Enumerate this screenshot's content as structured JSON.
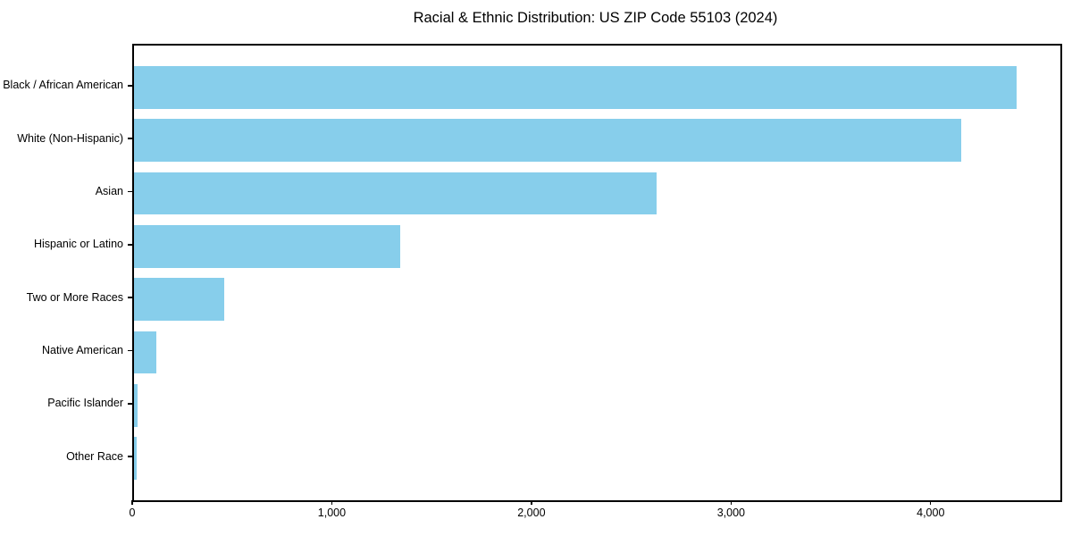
{
  "figure": {
    "background_color": "#ffffff",
    "frame_color": "#000000",
    "text_color": "#000000"
  },
  "chart_data": {
    "type": "bar",
    "orientation": "horizontal",
    "title": "Racial & Ethnic Distribution: US ZIP Code 55103 (2024)",
    "categories": [
      "Black / African American",
      "White (Non-Hispanic)",
      "Asian",
      "Hispanic or Latino",
      "Two or More Races",
      "Native American",
      "Pacific Islander",
      "Other Race"
    ],
    "values": [
      4420,
      4145,
      2620,
      1335,
      450,
      110,
      20,
      15
    ],
    "bar_color": "#87ceeb",
    "xlabel": "",
    "ylabel": "",
    "xlim": [
      0,
      4641
    ],
    "xticks": [
      0,
      1000,
      2000,
      3000,
      4000
    ],
    "xtick_labels": [
      "0",
      "1,000",
      "2,000",
      "3,000",
      "4,000"
    ],
    "grid": false,
    "legend": null
  }
}
